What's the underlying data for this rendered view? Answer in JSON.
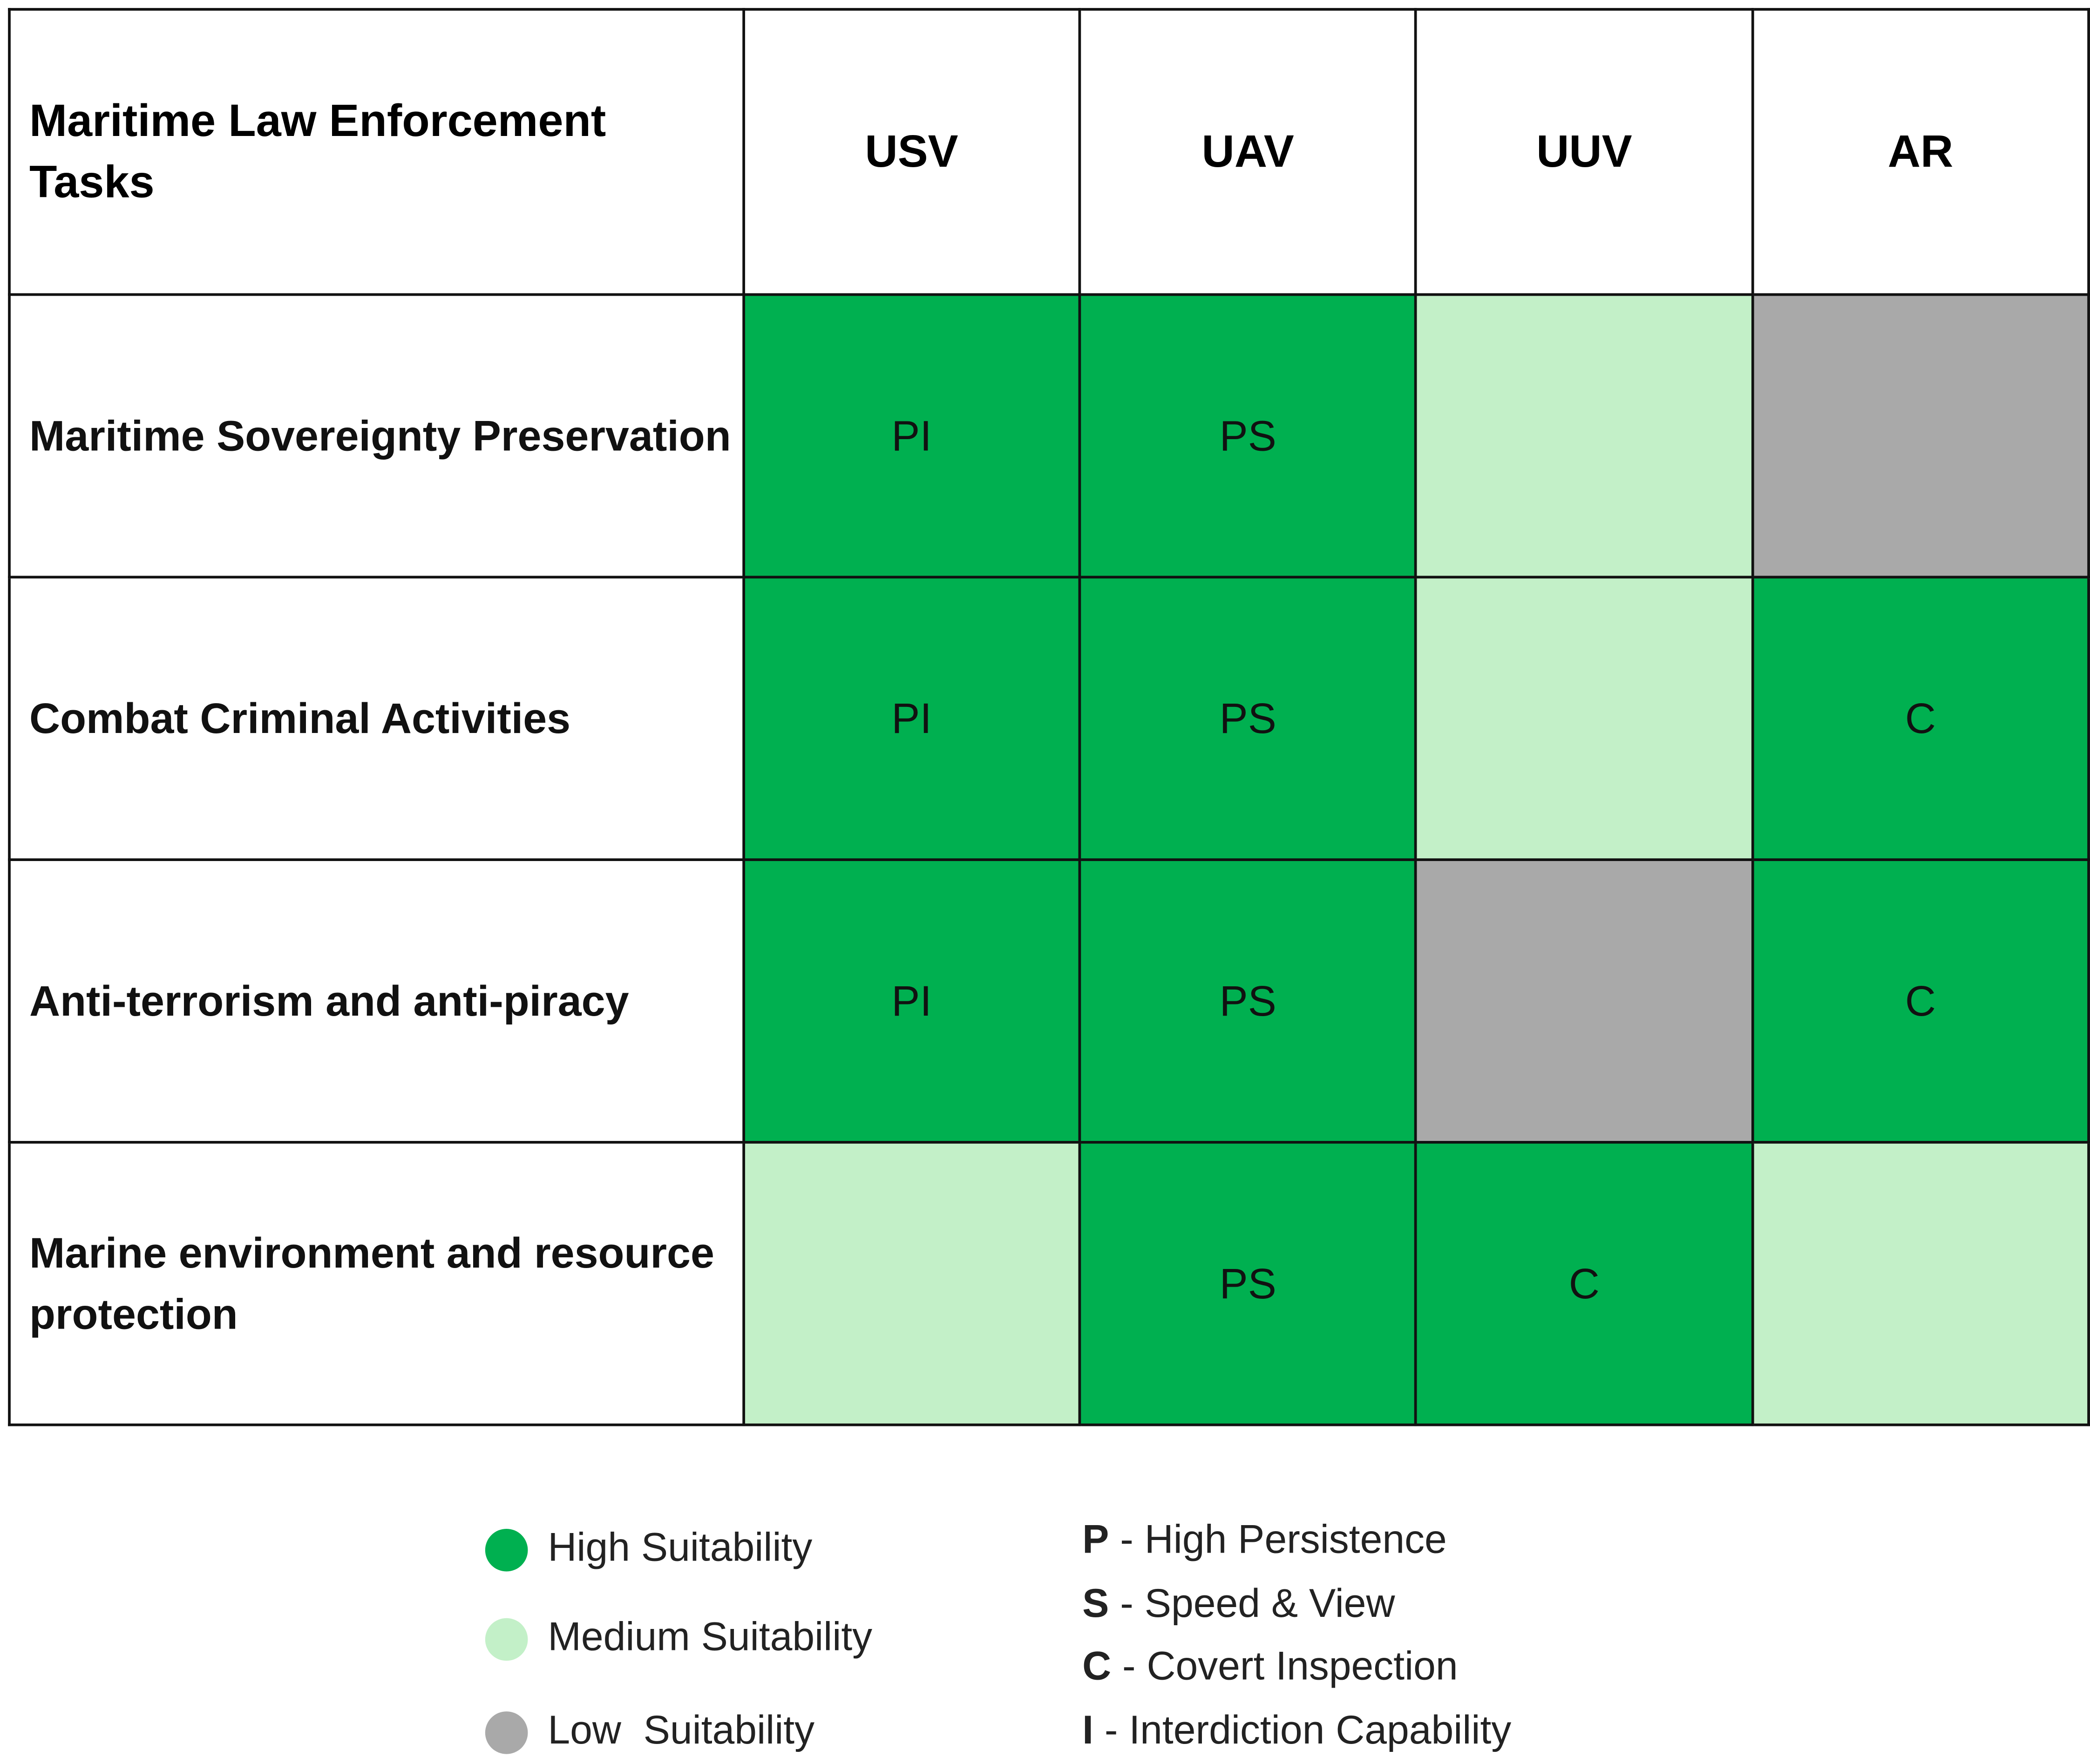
{
  "table": {
    "header": [
      "Maritime Law Enforcement Tasks",
      "USV",
      "UAV",
      "UUV",
      "AR"
    ],
    "rows": [
      {
        "task": "Maritime Sovereignty Preservation",
        "cells": [
          {
            "color": "#00b050",
            "label": "PI"
          },
          {
            "color": "#00b050",
            "label": "PS"
          },
          {
            "color": "#c3f0c8"
          },
          {
            "color": "#a9a9a9"
          }
        ]
      },
      {
        "task": "Combat Criminal Activities",
        "cells": [
          {
            "color": "#00b050",
            "label": "PI"
          },
          {
            "color": "#00b050",
            "label": "PS"
          },
          {
            "color": "#c3f0c8"
          },
          {
            "color": "#00b050",
            "label": "C"
          }
        ]
      },
      {
        "task": "Anti-terrorism and anti-piracy",
        "cells": [
          {
            "color": "#00b050",
            "label": "PI"
          },
          {
            "color": "#00b050",
            "label": "PS"
          },
          {
            "color": "#a9a9a9"
          },
          {
            "color": "#00b050",
            "label": "C"
          }
        ]
      },
      {
        "task": "Marine environment and resource protection",
        "cells": [
          {
            "color": "#c3f0c8"
          },
          {
            "color": "#00b050",
            "label": "PS"
          },
          {
            "color": "#00b050",
            "label": "C"
          },
          {
            "color": "#c3f0c8"
          }
        ]
      }
    ]
  },
  "legend": {
    "suitability": [
      {
        "label": "High Suitability",
        "color": "#00b050"
      },
      {
        "label": "Medium Suitability",
        "color": "#c3f0c8"
      },
      {
        "label": "Low  Suitability",
        "color": "#a9a9a9"
      }
    ],
    "keys": [
      {
        "letter": "P",
        "text": "- High Persistence"
      },
      {
        "letter": "S",
        "text": "- Speed & View"
      },
      {
        "letter": "C",
        "text": "- Covert Inspection"
      },
      {
        "letter": "I",
        "text": "- Interdiction Capability"
      }
    ]
  }
}
